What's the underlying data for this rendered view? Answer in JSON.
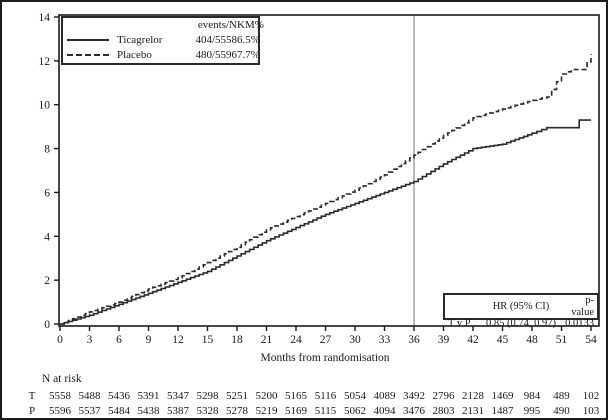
{
  "figure": {
    "x_axis_label": "Months from randomisation",
    "legend": {
      "header_events": "events/N",
      "header_km": "KM%",
      "series": [
        {
          "name": "Ticagrelor",
          "events_n": "404/5558",
          "km": "6.5%"
        },
        {
          "name": "Placebo",
          "events_n": "480/5596",
          "km": "7.7%"
        }
      ]
    },
    "stats_box": {
      "col_hr": "HR (95% CI)",
      "col_p": "p-value",
      "row_label": "T v P",
      "hr_value": "0.85 (0.74, 0.97)",
      "p_value": "0.0133"
    },
    "risk_table": {
      "title": "N at risk",
      "rows": [
        {
          "label": "T",
          "values": [
            5558,
            5488,
            5436,
            5391,
            5347,
            5298,
            5251,
            5200,
            5165,
            5116,
            5054,
            4089,
            3492,
            2796,
            2128,
            1469,
            984,
            489,
            102
          ]
        },
        {
          "label": "P",
          "values": [
            5596,
            5537,
            5484,
            5438,
            5387,
            5328,
            5278,
            5219,
            5169,
            5115,
            5062,
            4094,
            3476,
            2803,
            2131,
            1487,
            995,
            490,
            103
          ]
        }
      ]
    }
  },
  "chart_data": {
    "type": "line",
    "subtype": "kaplan-meier-cumulative-incidence-step",
    "title": "",
    "xlabel": "Months from randomisation",
    "ylabel": "",
    "xlim": [
      0,
      54
    ],
    "ylim": [
      0,
      14
    ],
    "xticks": [
      0,
      3,
      6,
      9,
      12,
      15,
      18,
      21,
      24,
      27,
      30,
      33,
      36,
      39,
      42,
      45,
      48,
      51,
      54
    ],
    "yticks": [
      0,
      2,
      4,
      6,
      8,
      10,
      12,
      14
    ],
    "grid": false,
    "legend_position": "top-left-inside",
    "reference_line_x": 36,
    "series": [
      {
        "name": "Ticagrelor",
        "style": "solid",
        "color": "#2a2a2a",
        "x": [
          0,
          3,
          6,
          9,
          12,
          15,
          18,
          21,
          24,
          27,
          30,
          33,
          36,
          39,
          42,
          45,
          48,
          49.5,
          52.5,
          52.8,
          54
        ],
        "y": [
          0,
          0.4,
          0.9,
          1.4,
          1.9,
          2.4,
          3.1,
          3.8,
          4.4,
          5.0,
          5.5,
          6.0,
          6.5,
          7.3,
          8.0,
          8.2,
          8.7,
          8.95,
          8.95,
          9.3,
          9.3
        ]
      },
      {
        "name": "Placebo",
        "style": "dashed",
        "color": "#2a2a2a",
        "x": [
          0,
          3,
          6,
          9,
          12,
          15,
          18,
          21,
          24,
          27,
          30,
          33,
          36,
          39,
          42,
          45,
          48,
          49.5,
          51,
          52,
          53.2,
          54
        ],
        "y": [
          0,
          0.55,
          1.0,
          1.6,
          2.1,
          2.8,
          3.5,
          4.3,
          4.9,
          5.5,
          6.1,
          6.8,
          7.7,
          8.6,
          9.4,
          9.8,
          10.2,
          10.35,
          11.4,
          11.6,
          11.6,
          12.3
        ]
      }
    ]
  },
  "colors": {
    "axis": "#1a1a1a",
    "curve": "#2a2a2a",
    "reference_line": "#8f8f8f",
    "text": "#1a1a1a",
    "background": "#ffffff"
  }
}
